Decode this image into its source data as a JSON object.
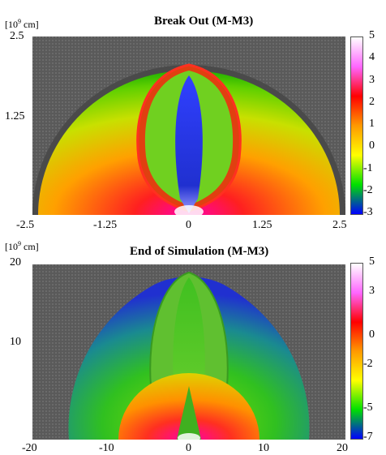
{
  "chart_data": [
    {
      "type": "heatmap",
      "title": "Break Out (M-M3)",
      "unit_label": {
        "base": "[10",
        "exp": "9",
        "rest": " cm]"
      },
      "x_ticks": [
        "-2.5",
        "-1.25",
        "0",
        "1.25",
        "2.5"
      ],
      "y_ticks": [
        "2.5",
        "1.25"
      ],
      "xlim": [
        -2.5,
        2.5
      ],
      "ylim": [
        0,
        2.5
      ],
      "colorbar": {
        "ticks": [
          "5",
          "4",
          "3",
          "2",
          "1",
          "0",
          "-1",
          "-2",
          "-3"
        ],
        "range": [
          -3,
          5
        ],
        "colors": [
          "#ffffff",
          "#ff66ff",
          "#ff0000",
          "#ff9900",
          "#ffff00",
          "#00e000",
          "#0000ff"
        ]
      }
    },
    {
      "type": "heatmap",
      "title": "End of Simulation (M-M3)",
      "unit_label": {
        "base": "[10",
        "exp": "9",
        "rest": " cm]"
      },
      "x_ticks": [
        "-20",
        "-10",
        "0",
        "10",
        "20"
      ],
      "y_ticks": [
        "20",
        "10"
      ],
      "xlim": [
        -20,
        20
      ],
      "ylim": [
        0,
        20
      ],
      "colorbar": {
        "ticks": [
          "5",
          "3",
          "0",
          "-2",
          "-5",
          "-7"
        ],
        "range": [
          -7,
          5
        ],
        "colors": [
          "#ffffff",
          "#ff66ff",
          "#ff0000",
          "#ff9900",
          "#ffff00",
          "#00e000",
          "#0000ff"
        ]
      }
    }
  ]
}
